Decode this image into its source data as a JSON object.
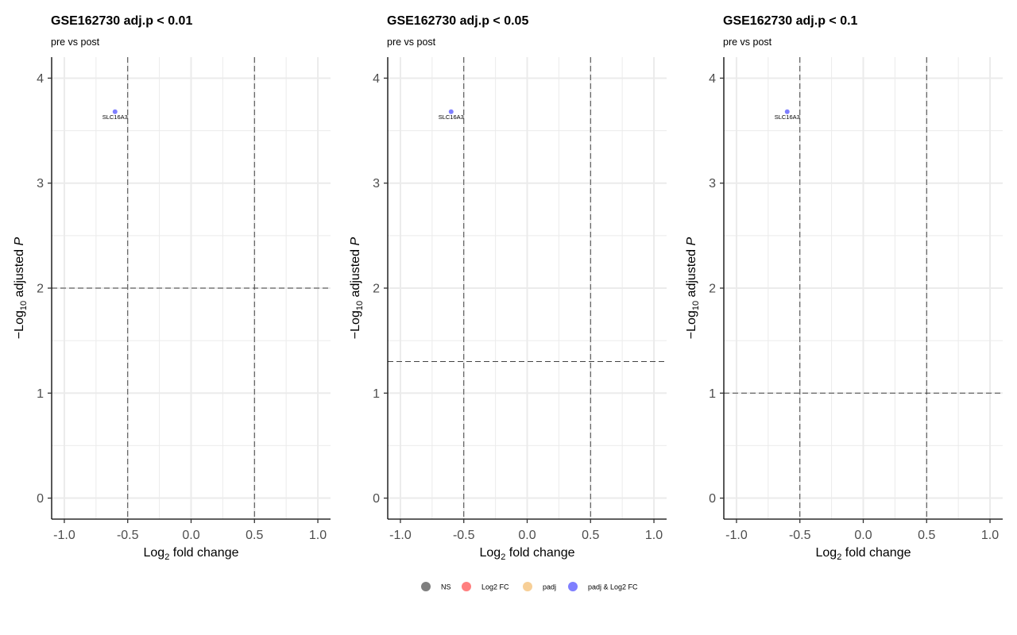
{
  "chart_data": [
    {
      "type": "scatter",
      "title": "GSE162730 adj.p < 0.01",
      "subtitle": "pre vs post",
      "xlabel": "Log2 fold change",
      "ylabel": "−Log10 adjusted P",
      "xlim": [
        -1.1,
        1.1
      ],
      "ylim": [
        -0.2,
        4.2
      ],
      "xticks": [
        "-1.0",
        "-0.5",
        "0.0",
        "0.5",
        "1.0"
      ],
      "yticks": [
        "0",
        "1",
        "2",
        "3",
        "4"
      ],
      "fc_cutoff": 0.5,
      "p_cutoff_line": 2,
      "grid": true,
      "points": [
        {
          "label": "SLC16A3",
          "x": -0.6,
          "y": 3.68,
          "group": "padj & Log2 FC"
        }
      ]
    },
    {
      "type": "scatter",
      "title": "GSE162730 adj.p < 0.05",
      "subtitle": "pre vs post",
      "xlabel": "Log2 fold change",
      "ylabel": "−Log10 adjusted P",
      "xlim": [
        -1.1,
        1.1
      ],
      "ylim": [
        -0.2,
        4.2
      ],
      "xticks": [
        "-1.0",
        "-0.5",
        "0.0",
        "0.5",
        "1.0"
      ],
      "yticks": [
        "0",
        "1",
        "2",
        "3",
        "4"
      ],
      "fc_cutoff": 0.5,
      "p_cutoff_line": 1.301,
      "grid": true,
      "points": [
        {
          "label": "SLC16A3",
          "x": -0.6,
          "y": 3.68,
          "group": "padj & Log2 FC"
        }
      ]
    },
    {
      "type": "scatter",
      "title": "GSE162730 adj.p < 0.1",
      "subtitle": "pre vs post",
      "xlabel": "Log2 fold change",
      "ylabel": "−Log10 adjusted P",
      "xlim": [
        -1.1,
        1.1
      ],
      "ylim": [
        -0.2,
        4.2
      ],
      "xticks": [
        "-1.0",
        "-0.5",
        "0.0",
        "0.5",
        "1.0"
      ],
      "yticks": [
        "0",
        "1",
        "2",
        "3",
        "4"
      ],
      "fc_cutoff": 0.5,
      "p_cutoff_line": 1,
      "grid": true,
      "points": [
        {
          "label": "SLC16A3",
          "x": -0.6,
          "y": 3.68,
          "group": "padj & Log2 FC"
        }
      ]
    }
  ],
  "legend": {
    "placement": "bottom",
    "items": [
      {
        "label": "NS",
        "color": "#000000"
      },
      {
        "label": "Log2 FC",
        "color": "#ff0000"
      },
      {
        "label": "padj",
        "color": "#f0a030"
      },
      {
        "label": "padj & Log2 FC",
        "color": "#0000ff"
      }
    ]
  },
  "colors": {
    "point_opacity": 0.5
  }
}
